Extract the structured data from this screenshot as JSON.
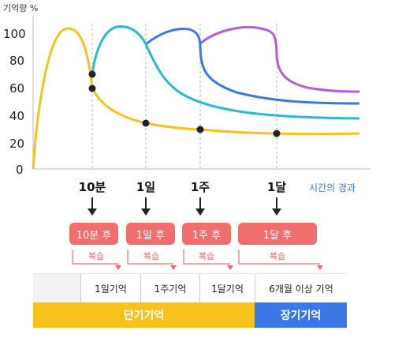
{
  "chart_data": {
    "type": "line",
    "ylabel": "기억량 %",
    "xlabel": "시간의 경과",
    "ylim": [
      0,
      105
    ],
    "yticks": [
      "0",
      "20",
      "40",
      "60",
      "80",
      "100"
    ],
    "review_points": [
      "10분",
      "1일",
      "1주",
      "1달"
    ],
    "forgetting_curve_dots": [
      {
        "at": "10분",
        "y": 71
      },
      {
        "at": "10분",
        "y": 60
      },
      {
        "at": "1일",
        "y": 35
      },
      {
        "at": "1주",
        "y": 30
      },
      {
        "at": "1달",
        "y": 27
      }
    ],
    "colors": {
      "no_review": "#f8c21c",
      "review_10min": "#26bcd0",
      "review_1day": "#3b78e7",
      "review_1week": "#b85ae0",
      "guide": "#b5b5b5",
      "accent": "#f26d6d"
    }
  },
  "badges": [
    "10분 후",
    "1일 후",
    "1주 후",
    "1달 후"
  ],
  "review_label": "복습",
  "memory_types": [
    "1일기억",
    "1주기억",
    "1달기억",
    "6개월 이상 기억"
  ],
  "bars": {
    "short_term": "단기기억",
    "long_term": "장기기억"
  }
}
